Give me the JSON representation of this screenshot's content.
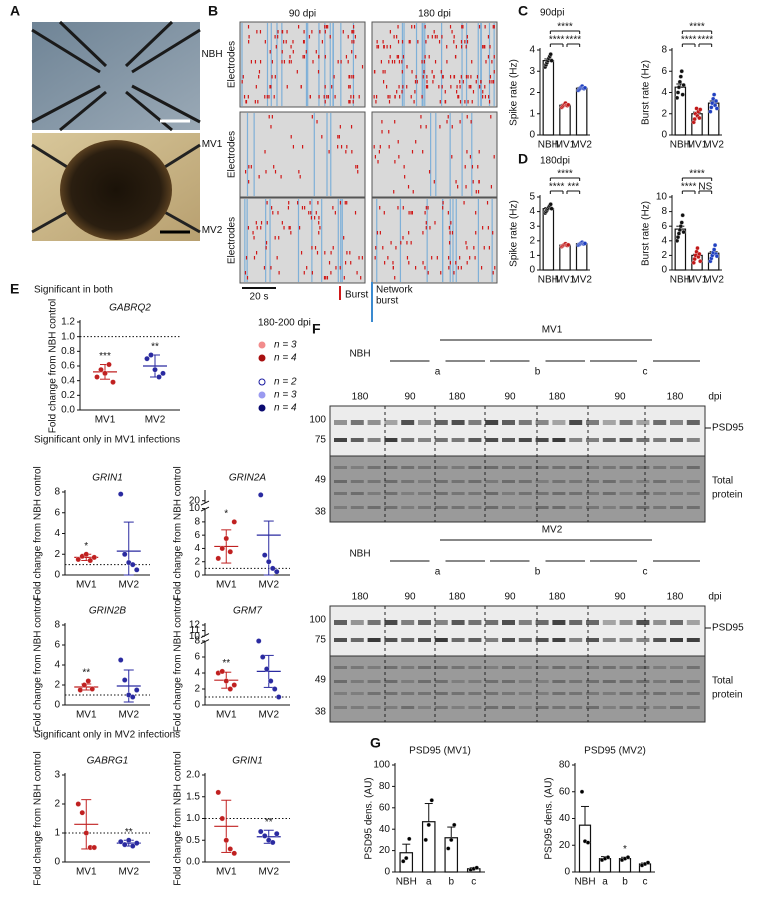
{
  "panel_labels": [
    "A",
    "B",
    "C",
    "D",
    "E",
    "F",
    "G"
  ],
  "b": {
    "columns": [
      "90 dpi",
      "180 dpi"
    ],
    "rows": [
      "NBH",
      "MV1",
      "MV2"
    ],
    "row_axis": "Electrodes",
    "scale": "20 s",
    "burst": "Burst",
    "network": [
      "Network",
      "burst"
    ]
  },
  "c_title": "90dpi",
  "d_title": "180dpi",
  "e": {
    "sections": [
      "Significant in both",
      "Significant only in MV1 infections",
      "Significant only in MV2 infections"
    ],
    "legend_title": "180-200 dpi",
    "legend": [
      {
        "label": "n = 3",
        "color": "#f28c8c"
      },
      {
        "label": "n = 4",
        "color": "#a81010"
      },
      {
        "label": "n = 2",
        "color": "#ffffff",
        "edge": "#1a1aa0"
      },
      {
        "label": "n = 3",
        "color": "#9a9af0"
      },
      {
        "label": "n = 4",
        "color": "#0a0a70"
      }
    ]
  },
  "f": {
    "blots": [
      {
        "nbh": "NBH",
        "group": "MV1",
        "subgroups": [
          "a",
          "b",
          "c"
        ],
        "dpi_labels": [
          "180",
          "90",
          "180",
          "90",
          "180",
          "90",
          "180"
        ],
        "dpi": "dpi",
        "band": "PSD95",
        "total": [
          "Total",
          "protein"
        ],
        "markers": [
          "100",
          "75",
          "49",
          "38"
        ]
      },
      {
        "nbh": "NBH",
        "group": "MV2",
        "subgroups": [
          "a",
          "b",
          "c"
        ],
        "dpi_labels": [
          "180",
          "90",
          "180",
          "90",
          "180",
          "90",
          "180"
        ],
        "dpi": "dpi",
        "band": "PSD95",
        "total": [
          "Total",
          "protein"
        ],
        "markers": [
          "100",
          "75",
          "49",
          "38"
        ]
      }
    ]
  },
  "chart_data": [
    {
      "type": "bar",
      "ylabel": "Spike rate (Hz)",
      "categories": [
        "NBH",
        "MV1",
        "MV2"
      ],
      "values": [
        3.5,
        1.4,
        2.2
      ],
      "errors": [
        0.08,
        0.04,
        0.04
      ],
      "points": [
        [
          3.2,
          3.3,
          3.4,
          3.5,
          3.6,
          3.7,
          3.8,
          3.5
        ],
        [
          1.3,
          1.35,
          1.4,
          1.45,
          1.5,
          1.4,
          1.38,
          1.42
        ],
        [
          2.1,
          2.15,
          2.2,
          2.25,
          2.3,
          2.2,
          2.18,
          2.22
        ]
      ],
      "colors": [
        "#111111",
        "#c01818",
        "#2040c0"
      ],
      "ylim": [
        0,
        4
      ],
      "yticks": [
        0,
        1,
        2,
        3,
        4
      ],
      "sig": [
        {
          "label": "****",
          "from": 0,
          "to": 1
        },
        {
          "label": "****",
          "from": 1,
          "to": 2
        },
        {
          "label": "****",
          "from": 0,
          "to": 2
        }
      ]
    },
    {
      "type": "bar",
      "ylabel": "Burst rate (Hz)",
      "categories": [
        "NBH",
        "MV1",
        "MV2"
      ],
      "values": [
        4.5,
        2.0,
        3.0
      ],
      "errors": [
        0.3,
        0.15,
        0.2
      ],
      "points": [
        [
          3.5,
          4,
          4.5,
          5,
          5.5,
          6,
          3.8,
          4.7
        ],
        [
          1.2,
          1.5,
          2,
          2.5,
          1.8,
          2.2,
          1.6,
          2.4
        ],
        [
          2.2,
          2.6,
          3,
          3.4,
          3.8,
          2.8,
          3.2,
          2.5
        ]
      ],
      "colors": [
        "#111111",
        "#c01818",
        "#2040c0"
      ],
      "ylim": [
        0,
        8
      ],
      "yticks": [
        0,
        2,
        4,
        6,
        8
      ],
      "sig": [
        {
          "label": "****",
          "from": 0,
          "to": 1
        },
        {
          "label": "****",
          "from": 1,
          "to": 2
        },
        {
          "label": "****",
          "from": 0,
          "to": 2
        }
      ]
    },
    {
      "type": "bar",
      "ylabel": "Spike rate (Hz)",
      "categories": [
        "NBH",
        "MV1",
        "MV2"
      ],
      "values": [
        4.2,
        1.7,
        1.8
      ],
      "errors": [
        0.07,
        0.04,
        0.04
      ],
      "points": [
        [
          3.9,
          4,
          4.1,
          4.2,
          4.3,
          4.4,
          4.5,
          4.2
        ],
        [
          1.6,
          1.65,
          1.7,
          1.75,
          1.8,
          1.7,
          1.68,
          1.72
        ],
        [
          1.7,
          1.75,
          1.8,
          1.85,
          1.9,
          1.8,
          1.78,
          1.82
        ]
      ],
      "colors": [
        "#111111",
        "#c01818",
        "#2040c0"
      ],
      "ylim": [
        0,
        5
      ],
      "yticks": [
        0,
        1,
        2,
        3,
        4,
        5
      ],
      "sig": [
        {
          "label": "****",
          "from": 0,
          "to": 1
        },
        {
          "label": "***",
          "from": 1,
          "to": 2
        },
        {
          "label": "****",
          "from": 0,
          "to": 2
        }
      ]
    },
    {
      "type": "bar",
      "ylabel": "Burst rate (Hz)",
      "categories": [
        "NBH",
        "MV1",
        "MV2"
      ],
      "values": [
        5.6,
        2.0,
        2.3
      ],
      "errors": [
        0.4,
        0.15,
        0.2
      ],
      "points": [
        [
          4,
          4.5,
          5,
          5.5,
          6,
          6.5,
          7.5,
          5.2
        ],
        [
          1,
          1.5,
          2,
          2.5,
          3,
          1.8,
          2.2,
          1.2
        ],
        [
          1.2,
          1.6,
          2,
          2.4,
          2.8,
          3.4,
          2.2,
          1.9
        ]
      ],
      "colors": [
        "#111111",
        "#c01818",
        "#2040c0"
      ],
      "ylim": [
        0,
        10
      ],
      "yticks": [
        0,
        2,
        4,
        6,
        8,
        10
      ],
      "sig": [
        {
          "label": "****",
          "from": 0,
          "to": 1
        },
        {
          "label": "NS",
          "from": 1,
          "to": 2
        },
        {
          "label": "****",
          "from": 0,
          "to": 2
        }
      ]
    },
    {
      "type": "dot",
      "title": "GABRQ2",
      "ylabel": "Fold change from NBH control",
      "categories": [
        "MV1",
        "MV2"
      ],
      "means": [
        0.52,
        0.6
      ],
      "sds": [
        0.1,
        0.15
      ],
      "points": [
        [
          0.45,
          0.55,
          0.5,
          0.62,
          0.38
        ],
        [
          0.7,
          0.75,
          0.55,
          0.45,
          0.5
        ]
      ],
      "colors": [
        "#c02020",
        "#2a2aa0"
      ],
      "ylim": [
        0,
        1.2
      ],
      "yticks": [
        {
          "value": 0,
          "label": "0.0"
        },
        0.2,
        0.4,
        0.6,
        0.8,
        {
          "value": 1,
          "label": "1.0"
        },
        1.2
      ],
      "ref": 1,
      "stars": [
        "***",
        "**"
      ]
    },
    {
      "type": "dot",
      "title": "GRIN1",
      "ylabel": "Fold change from NBH control",
      "categories": [
        "MV1",
        "MV2"
      ],
      "means": [
        1.7,
        2.3
      ],
      "sds": [
        0.3,
        2.8
      ],
      "points": [
        [
          1.5,
          1.8,
          2.0,
          1.4,
          1.7
        ],
        [
          7.8,
          2.0,
          1.2,
          1.0,
          0.5
        ]
      ],
      "colors": [
        "#c02020",
        "#2a2aa0"
      ],
      "ylim": [
        0,
        8
      ],
      "yticks": [
        0,
        2,
        4,
        6,
        8
      ],
      "ref": 1,
      "stars": [
        "*",
        null
      ]
    },
    {
      "type": "dot",
      "title": "GRIN2A",
      "ylabel": "Fold change from NBH control",
      "categories": [
        "MV1",
        "MV2"
      ],
      "means": [
        4.3,
        6
      ],
      "sds": [
        2.5,
        7
      ],
      "points": [
        [
          2.5,
          4,
          5.5,
          3.5,
          8
        ],
        [
          22,
          3,
          2,
          1,
          0.5
        ]
      ],
      "colors": [
        "#c02020",
        "#2a2aa0"
      ],
      "ylim": [
        0,
        23
      ],
      "ybreak": [
        10,
        19
      ],
      "yticks": [
        0,
        2,
        4,
        6,
        8,
        10,
        20
      ],
      "ref": 1,
      "stars": [
        "*",
        null
      ]
    },
    {
      "type": "dot",
      "title": "GRIN2B",
      "ylabel": "Fold change from NBH control",
      "categories": [
        "MV1",
        "MV2"
      ],
      "means": [
        1.8,
        1.9
      ],
      "sds": [
        0.3,
        1.6
      ],
      "points": [
        [
          1.5,
          2.0,
          2.4,
          1.6
        ],
        [
          4.5,
          2.5,
          1.0,
          0.8,
          1.5
        ]
      ],
      "colors": [
        "#c02020",
        "#2a2aa0"
      ],
      "ylim": [
        0,
        8
      ],
      "yticks": [
        0,
        2,
        4,
        6,
        8
      ],
      "ref": 1,
      "stars": [
        "**",
        null
      ]
    },
    {
      "type": "dot",
      "title": "GRM7",
      "ylabel": "Fold change from NBH control",
      "categories": [
        "MV1",
        "MV2"
      ],
      "means": [
        3.1,
        4.2
      ],
      "sds": [
        1.0,
        2.0
      ],
      "points": [
        [
          4,
          4.2,
          3,
          2,
          2.5
        ],
        [
          8,
          6,
          4.5,
          3,
          2,
          1
        ]
      ],
      "colors": [
        "#c02020",
        "#2a2aa0"
      ],
      "ylim": [
        0,
        12
      ],
      "ybreak": [
        8,
        10
      ],
      "yticks": [
        0,
        2,
        4,
        6,
        8,
        10,
        11,
        12
      ],
      "ref": 1,
      "stars": [
        "**",
        null
      ]
    },
    {
      "type": "dot",
      "title": "GABRG1",
      "ylabel": "Fold change from NBH control",
      "categories": [
        "MV1",
        "MV2"
      ],
      "means": [
        1.3,
        0.65
      ],
      "sds": [
        0.85,
        0.1
      ],
      "points": [
        [
          2.0,
          1.7,
          1.0,
          0.5,
          0.5
        ],
        [
          0.7,
          0.6,
          0.75,
          0.55,
          0.65
        ]
      ],
      "colors": [
        "#c02020",
        "#2a2aa0"
      ],
      "ylim": [
        0,
        3
      ],
      "yticks": [
        0,
        1,
        2,
        3
      ],
      "ref": 1,
      "stars": [
        null,
        "**"
      ]
    },
    {
      "type": "dot",
      "title": "GRIN1",
      "ylabel": "Fold change from NBH control",
      "categories": [
        "MV1",
        "MV2"
      ],
      "means": [
        0.82,
        0.58
      ],
      "sds": [
        0.6,
        0.15
      ],
      "points": [
        [
          1.6,
          1.0,
          0.5,
          0.3,
          0.2
        ],
        [
          0.7,
          0.6,
          0.5,
          0.45,
          0.65
        ]
      ],
      "colors": [
        "#c02020",
        "#2a2aa0"
      ],
      "ylim": [
        0,
        2
      ],
      "yticks": [
        {
          "value": 0,
          "label": "0.0"
        },
        0.5,
        {
          "value": 1,
          "label": "1.0"
        },
        1.5,
        {
          "value": 2,
          "label": "2.0"
        }
      ],
      "ref": 1,
      "stars": [
        null,
        "**"
      ]
    },
    {
      "type": "bar",
      "title": "PSD95 (MV1)",
      "ylabel": "PSD95 dens. (AU)",
      "categories": [
        "NBH",
        "a",
        "b",
        "c"
      ],
      "values": [
        18,
        47,
        32,
        3
      ],
      "errors": [
        8,
        17,
        10,
        1
      ],
      "points": [
        [
          10,
          13,
          31
        ],
        [
          30,
          44,
          67
        ],
        [
          22,
          30,
          44
        ],
        [
          2,
          3,
          4
        ]
      ],
      "colors": [
        "#000000",
        "#000000",
        "#000000",
        "#000000"
      ],
      "ylim": [
        0,
        100
      ],
      "yticks": [
        0,
        20,
        40,
        60,
        80,
        100
      ]
    },
    {
      "type": "bar",
      "title": "PSD95 (MV2)",
      "ylabel": "PSD95 dens. (AU)",
      "categories": [
        "NBH",
        "a",
        "b",
        "c"
      ],
      "values": [
        35,
        10,
        10,
        6
      ],
      "errors": [
        14,
        1.5,
        1,
        0.7
      ],
      "points": [
        [
          60,
          23,
          22
        ],
        [
          9,
          10,
          11
        ],
        [
          9,
          10,
          11
        ],
        [
          5,
          6,
          7
        ]
      ],
      "colors": [
        "#000000",
        "#000000",
        "#000000",
        "#000000"
      ],
      "ylim": [
        0,
        80
      ],
      "yticks": [
        0,
        20,
        40,
        60,
        80
      ],
      "stars": [
        null,
        null,
        "*",
        null
      ]
    }
  ]
}
